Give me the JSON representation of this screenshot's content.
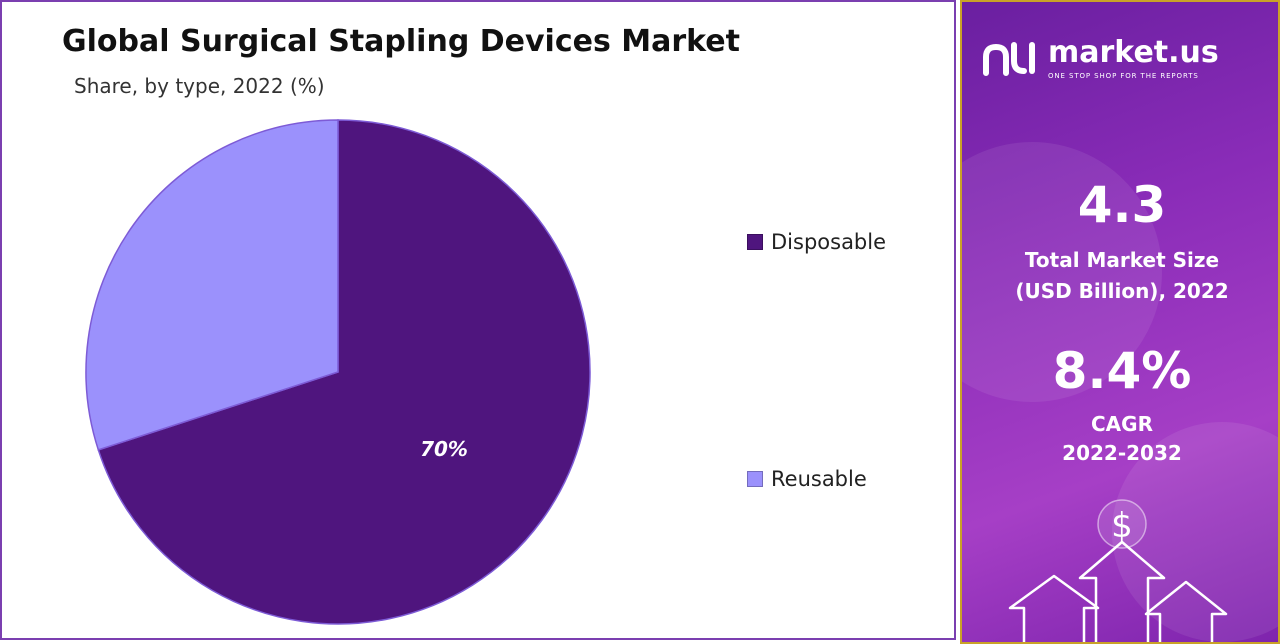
{
  "chart_data": {
    "type": "pie",
    "title": "Global Surgical Stapling Devices Market",
    "subtitle": "Share, by type, 2022 (%)",
    "categories": [
      "Disposable",
      "Reusable"
    ],
    "values": [
      70,
      30
    ],
    "slice_labels": [
      "70%",
      ""
    ],
    "colors": [
      "#4f157e",
      "#9b91fc"
    ],
    "legend_position": "right"
  },
  "panel": {
    "brand_name": "market.us",
    "brand_tagline": "ONE STOP SHOP FOR THE REPORTS",
    "stat1_value": "4.3",
    "stat1_caption_line1": "Total Market Size",
    "stat1_caption_line2": "(USD Billion), 2022",
    "stat2_value": "8.4%",
    "stat2_caption_line1": "CAGR",
    "stat2_caption_line2": "2022-2032",
    "dollar_symbol": "$",
    "icons": [
      "market-us-logo-icon",
      "dollar-icon",
      "arrow-up-icon"
    ]
  }
}
